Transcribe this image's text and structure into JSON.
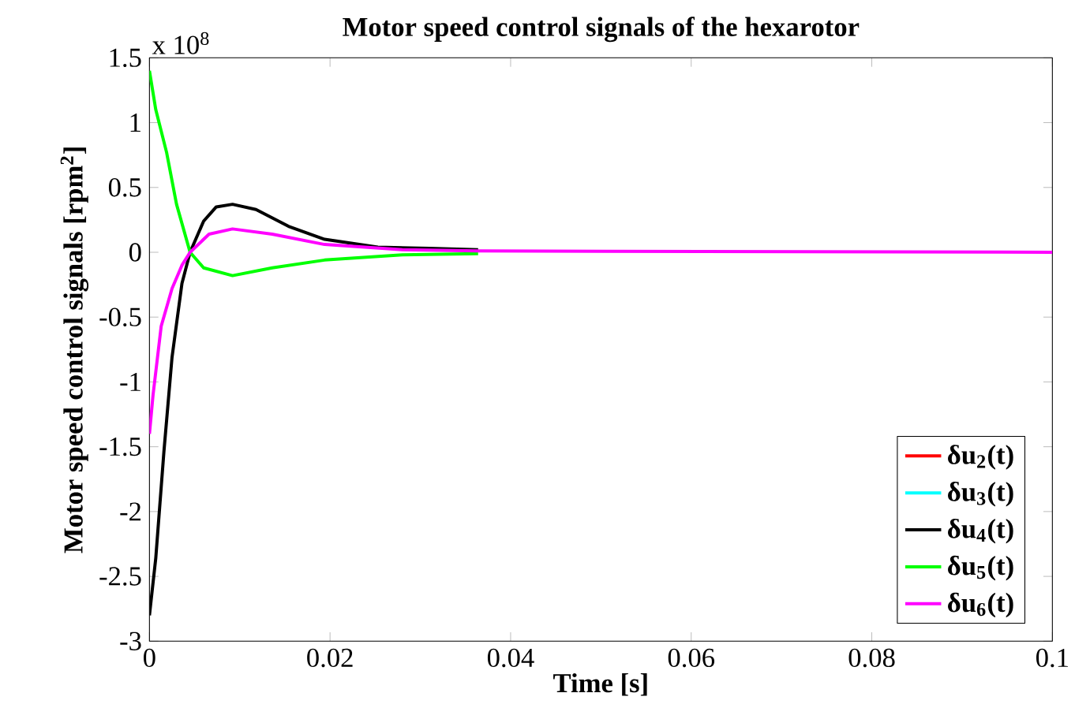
{
  "chart_data": {
    "type": "line",
    "title": "Motor speed control signals of the hexarotor",
    "xlabel": "Time [s]",
    "ylabel": "Motor speed control signals [rpm$^{2}$]",
    "annotations": [
      "x 10$^{8}$"
    ],
    "xlim": [
      0,
      0.1
    ],
    "ylim": [
      -3,
      1.5
    ],
    "xticks": [
      0,
      0.02,
      0.04,
      0.06,
      0.08,
      0.1
    ],
    "yticks": [
      -3,
      -2.5,
      -2,
      -1.5,
      -1,
      -0.5,
      0,
      0.5,
      1,
      1.5
    ],
    "grid": false,
    "legend": "bottom right",
    "line_style": "solid",
    "marker": "none",
    "series": [
      {
        "name": "δu$_{2}$(t)",
        "color": "#ff0000"
      },
      {
        "name": "δu$_{3}$(t)",
        "color": "#00ffff"
      },
      {
        "name": "δu$_{4}$(t)",
        "color": "#000000",
        "x": [
          0,
          0.0007,
          0.0016,
          0.0025,
          0.0036,
          0.0045,
          0.006,
          0.0074,
          0.0092,
          0.0118,
          0.0154,
          0.0194,
          0.0253,
          0.031,
          0.0364
        ],
        "values": [
          -2.8,
          -2.36,
          -1.54,
          -0.81,
          -0.24,
          0,
          0.24,
          0.35,
          0.37,
          0.33,
          0.2,
          0.1,
          0.04,
          0.03,
          0.02
        ]
      },
      {
        "name": "δu$_{5}$(t)",
        "color": "#00ff00",
        "x": [
          0,
          0.0007,
          0.0019,
          0.003,
          0.0045,
          0.006,
          0.0092,
          0.0136,
          0.0194,
          0.028,
          0.0364
        ],
        "values": [
          1.4,
          1.1,
          0.77,
          0.37,
          0,
          -0.12,
          -0.18,
          -0.12,
          -0.06,
          -0.02,
          -0.01
        ]
      },
      {
        "name": "δu$_{6}$(t)",
        "color": "#ff00ff",
        "x": [
          0,
          0.0004,
          0.0013,
          0.0025,
          0.0036,
          0.0045,
          0.0066,
          0.0092,
          0.0136,
          0.0194,
          0.028,
          0.0364,
          0.1
        ],
        "values": [
          -1.4,
          -1.1,
          -0.57,
          -0.28,
          -0.1,
          0,
          0.14,
          0.18,
          0.14,
          0.06,
          0.02,
          0.01,
          0
        ]
      }
    ]
  }
}
